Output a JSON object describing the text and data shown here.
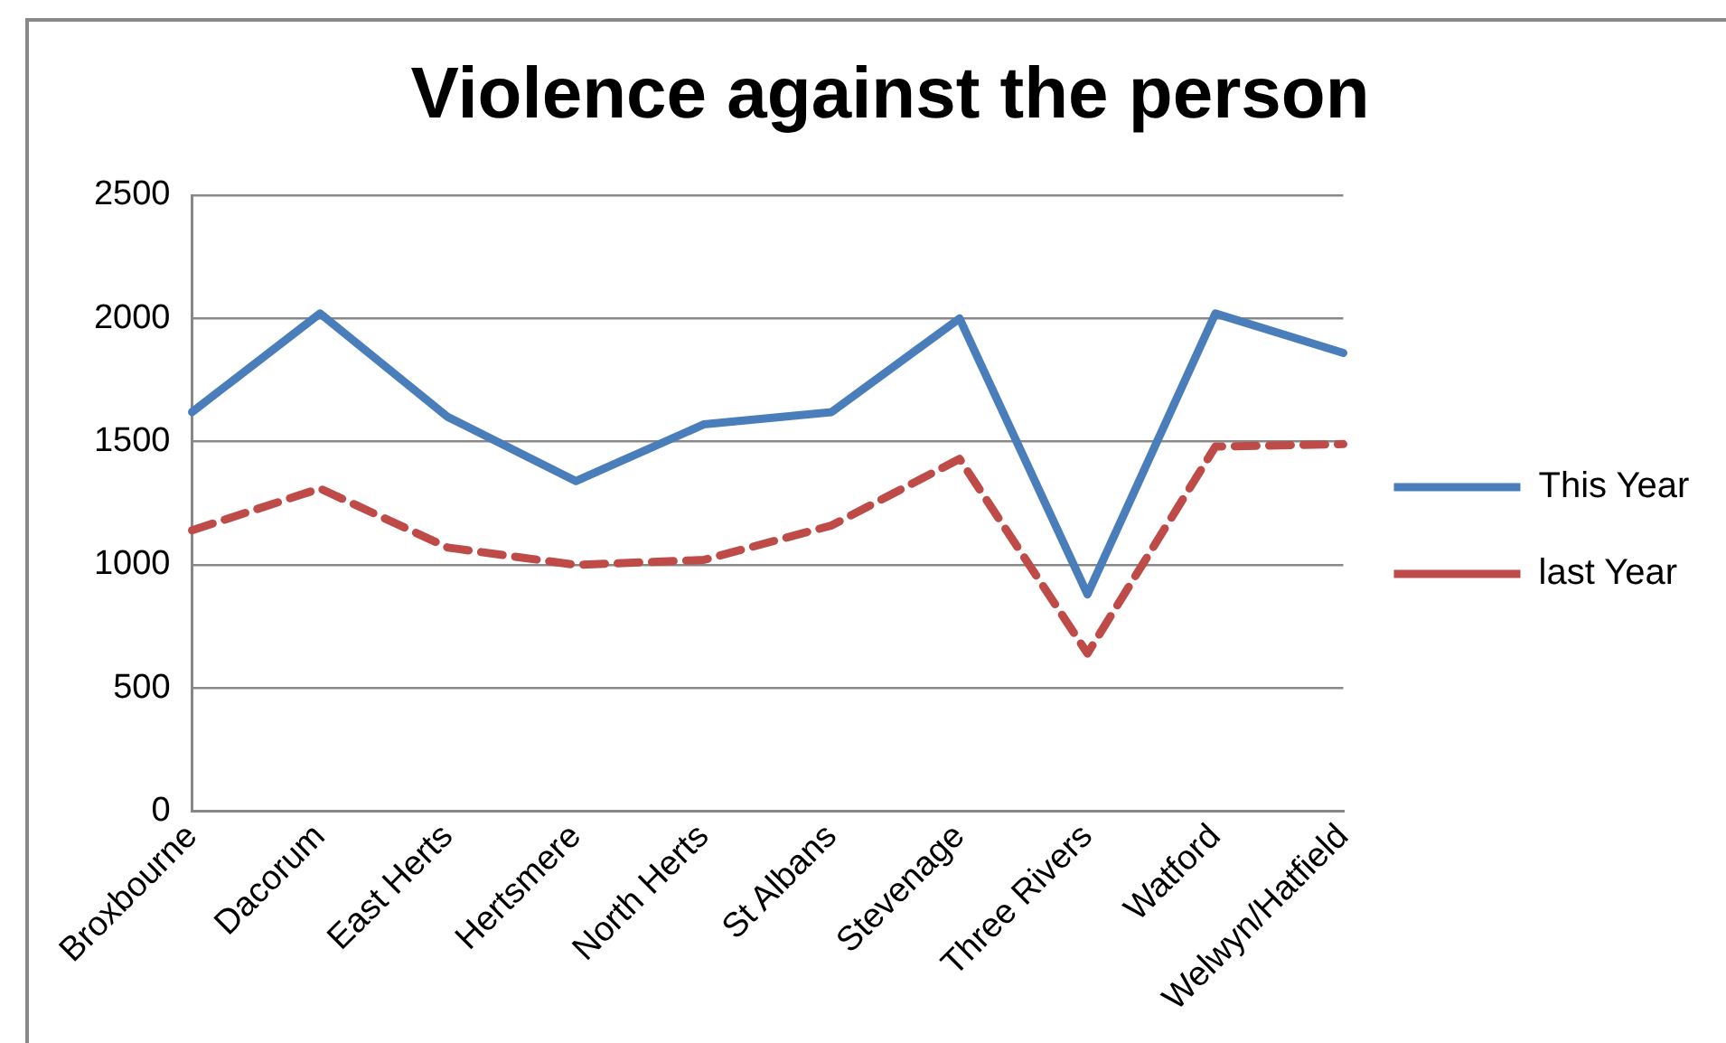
{
  "chart_data": {
    "type": "line",
    "title": "Violence against the person",
    "categories": [
      "Broxbourne",
      "Dacorum",
      "East Herts",
      "Hertsmere",
      "North Herts",
      "St Albans",
      "Stevenage",
      "Three Rivers",
      "Watford",
      "Welwyn/Hatfield"
    ],
    "series": [
      {
        "name": "This Year",
        "color": "#4a7ebb",
        "line_style": "solid",
        "values": [
          1620,
          2020,
          1600,
          1340,
          1570,
          1620,
          2000,
          880,
          2020,
          1860
        ]
      },
      {
        "name": "last Year",
        "color": "#be4b48",
        "line_style": "dashed",
        "values": [
          1140,
          1310,
          1070,
          1000,
          1020,
          1160,
          1430,
          640,
          1480,
          1490
        ]
      }
    ],
    "ylim": [
      0,
      2500
    ],
    "yticks": [
      0,
      500,
      1000,
      1500,
      2000,
      2500
    ],
    "grid": "y",
    "legend": "right",
    "marker": "none"
  }
}
